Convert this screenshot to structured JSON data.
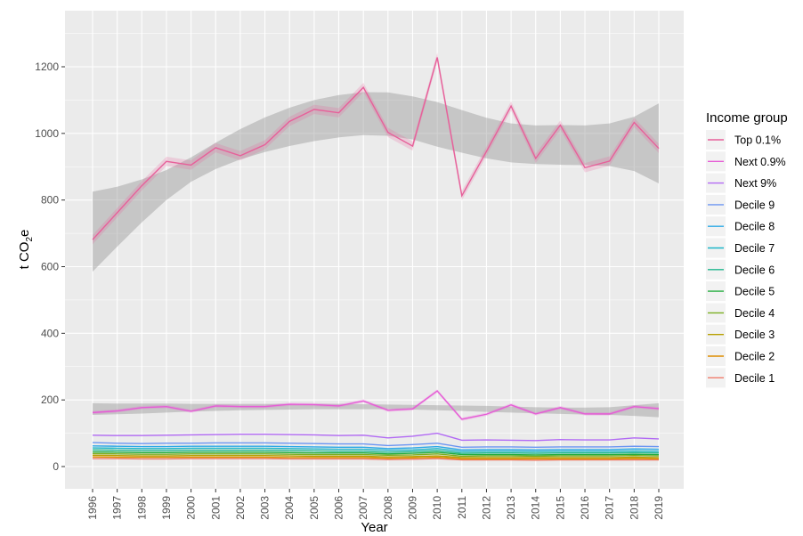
{
  "chart_data": {
    "type": "line",
    "title": "",
    "xlabel": "Year",
    "ylabel_main": "t CO",
    "ylabel_sub": "2",
    "ylabel_tail": "e",
    "ylim": [
      -55,
      1340
    ],
    "yticks": [
      0,
      200,
      400,
      600,
      800,
      1000,
      1200
    ],
    "x": [
      1996,
      1997,
      1998,
      1999,
      2000,
      2001,
      2002,
      2003,
      2004,
      2005,
      2006,
      2007,
      2008,
      2009,
      2010,
      2011,
      2012,
      2013,
      2014,
      2015,
      2016,
      2017,
      2018,
      2019
    ],
    "x_tick_labels": [
      "1996",
      "1997",
      "1998",
      "1999",
      "2000",
      "2001",
      "2002",
      "2003",
      "2004",
      "2005",
      "2006",
      "2007",
      "2008",
      "2009",
      "2010",
      "2011",
      "2012",
      "2013",
      "2014",
      "2015",
      "2016",
      "2017",
      "2018",
      "2019"
    ],
    "legend_title": "Income group",
    "series": [
      {
        "name": "Top 0.1%",
        "color": "#E7609A",
        "values": [
          681,
          762,
          843,
          916,
          905,
          957,
          933,
          966,
          1036,
          1072,
          1062,
          1138,
          1003,
          962,
          1228,
          813,
          946,
          1082,
          925,
          1025,
          897,
          917,
          1033,
          955
        ]
      },
      {
        "name": "Next 0.9%",
        "color": "#E65CD6",
        "values": [
          162,
          167,
          177,
          180,
          166,
          182,
          180,
          180,
          187,
          186,
          182,
          197,
          169,
          173,
          227,
          142,
          157,
          185,
          158,
          177,
          158,
          158,
          180,
          174
        ]
      },
      {
        "name": "Next 9%",
        "color": "#B26AF4",
        "values": [
          94,
          93,
          93,
          94,
          95,
          96,
          97,
          97,
          96,
          95,
          93,
          94,
          86,
          91,
          100,
          79,
          80,
          79,
          78,
          81,
          80,
          80,
          86,
          83
        ]
      },
      {
        "name": "Decile 9",
        "color": "#6C96F2",
        "values": [
          72,
          70,
          69,
          70,
          70,
          71,
          71,
          71,
          70,
          69,
          68,
          68,
          63,
          66,
          70,
          58,
          59,
          59,
          58,
          59,
          59,
          59,
          61,
          60
        ]
      },
      {
        "name": "Decile 8",
        "color": "#2BA8E6",
        "values": [
          62,
          61,
          60,
          60,
          61,
          61,
          61,
          61,
          60,
          59,
          58,
          58,
          54,
          56,
          60,
          50,
          51,
          51,
          50,
          51,
          51,
          51,
          53,
          52
        ]
      },
      {
        "name": "Decile 7",
        "color": "#1DB5C8",
        "values": [
          56,
          55,
          54,
          54,
          55,
          55,
          55,
          55,
          54,
          53,
          52,
          52,
          49,
          50,
          54,
          45,
          46,
          46,
          45,
          46,
          46,
          46,
          47,
          46
        ]
      },
      {
        "name": "Decile 6",
        "color": "#1FB68E",
        "values": [
          50,
          49,
          48,
          48,
          49,
          49,
          49,
          49,
          48,
          47,
          46,
          46,
          43,
          45,
          48,
          40,
          41,
          41,
          40,
          41,
          41,
          41,
          42,
          41
        ]
      },
      {
        "name": "Decile 5",
        "color": "#22AC3E",
        "values": [
          44,
          43,
          42,
          42,
          43,
          43,
          43,
          43,
          42,
          41,
          41,
          41,
          38,
          40,
          43,
          36,
          36,
          36,
          35,
          36,
          36,
          36,
          37,
          36
        ]
      },
      {
        "name": "Decile 4",
        "color": "#7AAE20",
        "values": [
          39,
          38,
          37,
          37,
          38,
          38,
          38,
          38,
          37,
          36,
          36,
          36,
          34,
          35,
          38,
          31,
          32,
          32,
          31,
          32,
          32,
          32,
          33,
          32
        ]
      },
      {
        "name": "Decile 3",
        "color": "#B79F00",
        "values": [
          34,
          33,
          32,
          32,
          33,
          33,
          33,
          33,
          32,
          31,
          31,
          31,
          29,
          30,
          32,
          27,
          27,
          27,
          27,
          27,
          27,
          27,
          28,
          27
        ]
      },
      {
        "name": "Decile 2",
        "color": "#DE8C00",
        "values": [
          29,
          28,
          28,
          28,
          28,
          28,
          28,
          28,
          27,
          27,
          27,
          27,
          25,
          26,
          28,
          23,
          23,
          23,
          23,
          23,
          23,
          23,
          24,
          23
        ]
      },
      {
        "name": "Decile 1",
        "color": "#F07C6C",
        "values": [
          24,
          24,
          23,
          23,
          24,
          24,
          24,
          24,
          23,
          23,
          23,
          23,
          21,
          22,
          24,
          20,
          20,
          20,
          19,
          20,
          20,
          20,
          20,
          20
        ]
      }
    ],
    "smooth_bands": [
      {
        "name": "Top 0.1% trend",
        "lower": [
          585,
          660,
          733,
          800,
          855,
          893,
          922,
          944,
          962,
          977,
          988,
          995,
          993,
          982,
          960,
          942,
          925,
          913,
          908,
          906,
          905,
          902,
          887,
          850
        ],
        "upper": [
          825,
          840,
          862,
          890,
          928,
          972,
          1013,
          1048,
          1077,
          1100,
          1115,
          1124,
          1123,
          1111,
          1094,
          1070,
          1047,
          1030,
          1024,
          1025,
          1024,
          1030,
          1050,
          1090
        ]
      },
      {
        "name": "Next 0.9% trend",
        "lower": [
          155,
          157,
          159,
          162,
          165,
          167,
          169,
          170,
          171,
          172,
          172,
          172,
          172,
          171,
          169,
          167,
          164,
          162,
          160,
          158,
          156,
          155,
          152,
          148
        ],
        "upper": [
          190,
          189,
          189,
          189,
          188,
          188,
          188,
          188,
          188,
          188,
          188,
          187,
          186,
          185,
          184,
          183,
          182,
          180,
          178,
          177,
          177,
          178,
          184,
          190
        ]
      }
    ]
  }
}
